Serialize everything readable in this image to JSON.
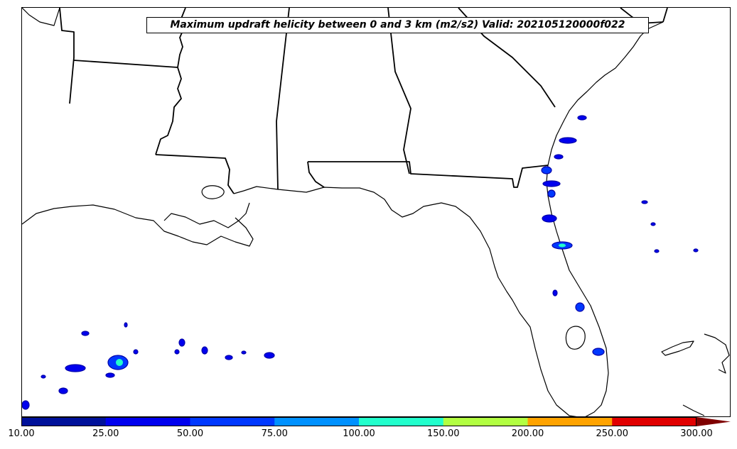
{
  "title": "Maximum updraft helicity between 0 and 3 km (m2/s2) Valid: 202105120000f022",
  "colorbar": {
    "ticks": [
      "10.00",
      "25.00",
      "50.00",
      "75.00",
      "100.00",
      "150.00",
      "200.00",
      "250.00",
      "300.00"
    ],
    "colors": [
      "#00119a",
      "#0000ee",
      "#0038ff",
      "#0091ff",
      "#22ffcc",
      "#b2ff42",
      "#ffa300",
      "#e10000"
    ],
    "extend_color": "#7f0000"
  },
  "field_colors": {
    "outline": "#0000aa",
    "low": "#0000ee",
    "mid": "#0038ff",
    "high": "#22ffcc"
  }
}
